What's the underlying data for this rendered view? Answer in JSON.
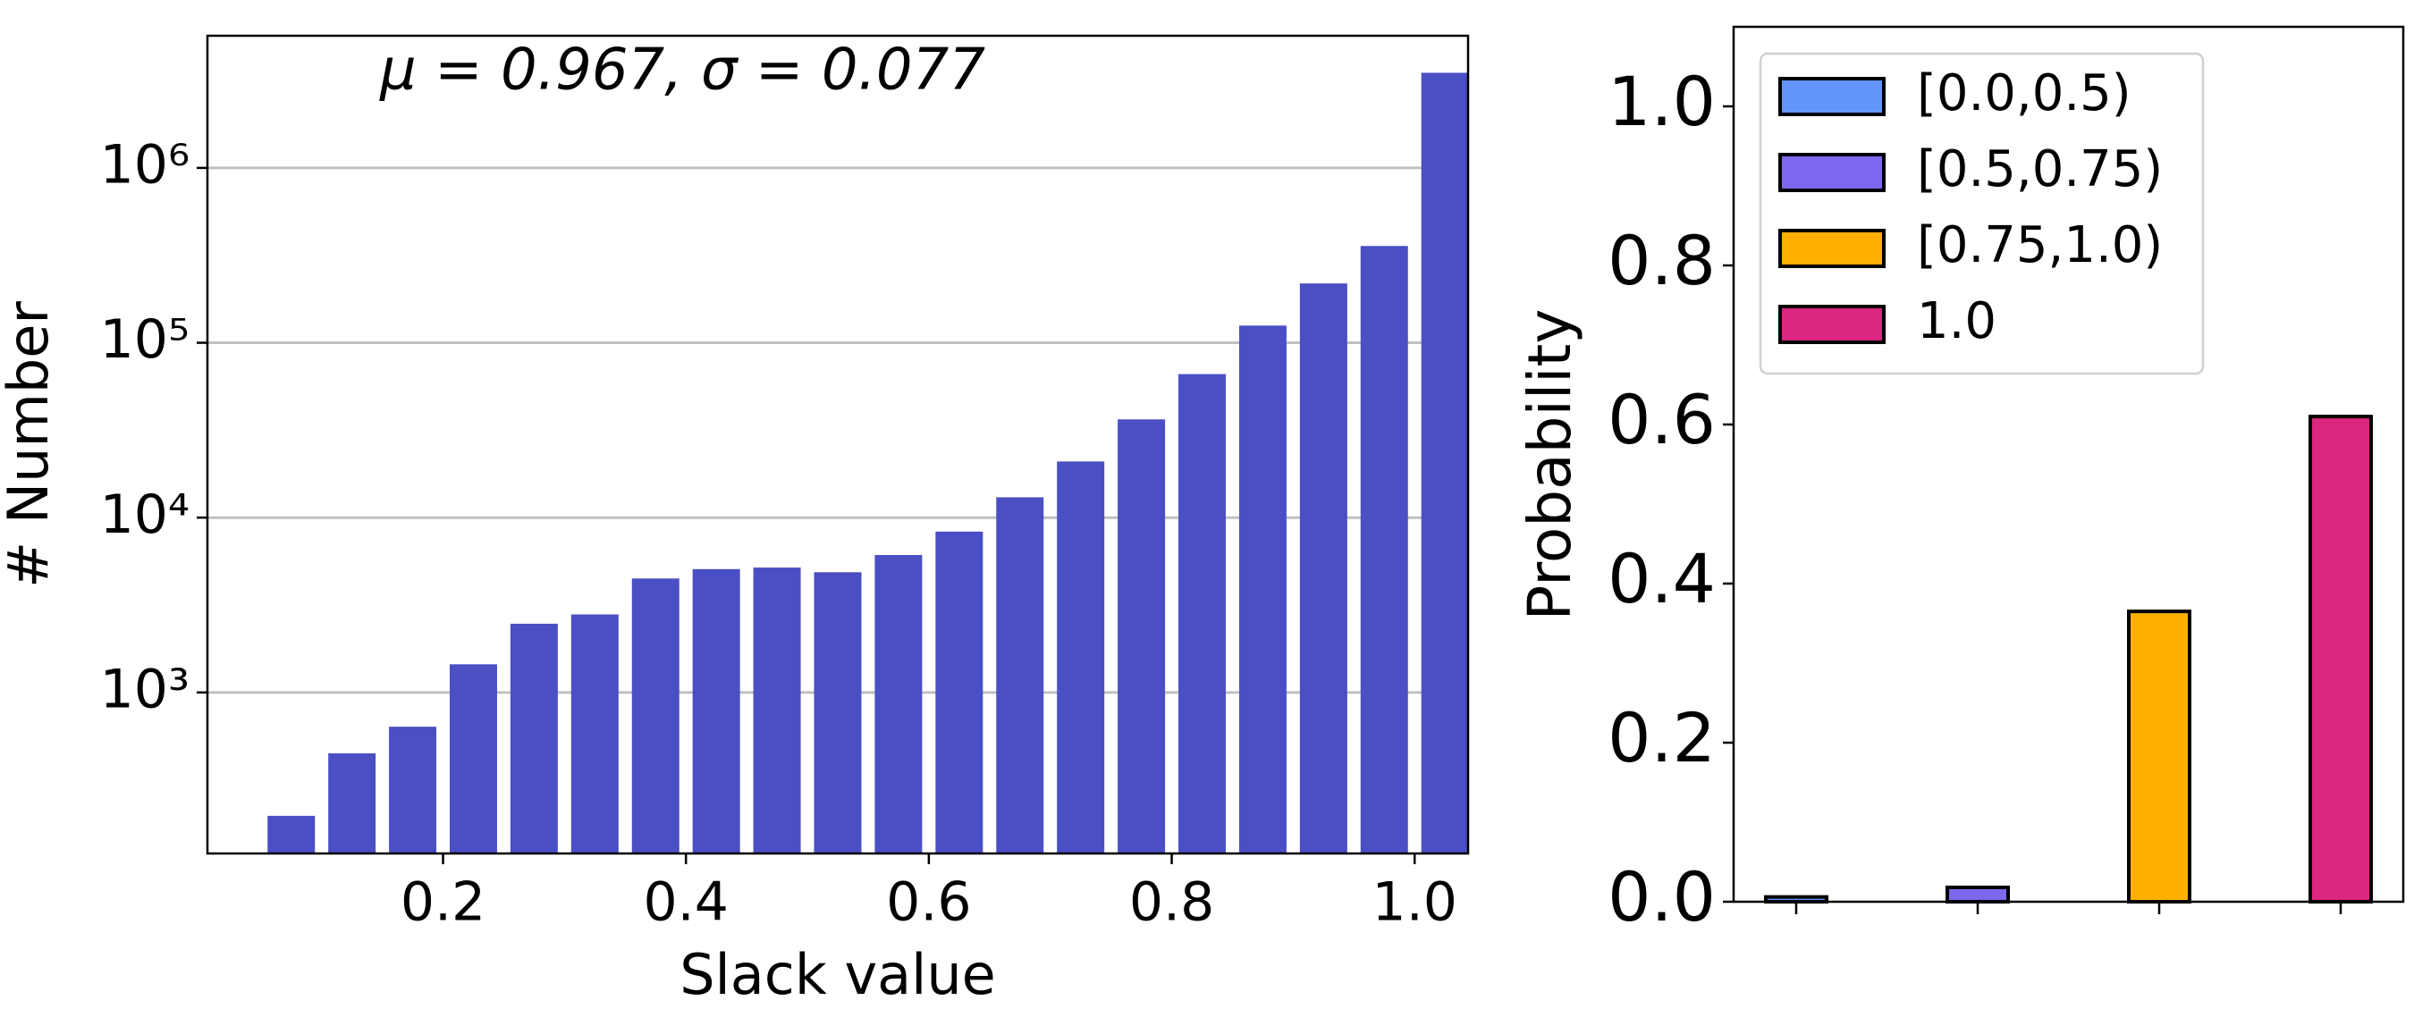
{
  "chart_data": [
    {
      "type": "histogram",
      "annotation": "μ = 0.967, σ = 0.077",
      "xlabel": "Slack value",
      "ylabel": "# Number",
      "bins": [
        0.05,
        0.1,
        0.15,
        0.2,
        0.25,
        0.3,
        0.35,
        0.4,
        0.45,
        0.5,
        0.55,
        0.6,
        0.65,
        0.7,
        0.75,
        0.8,
        0.85,
        0.9,
        0.95,
        1.0,
        1.05
      ],
      "values": [
        197,
        449,
        637,
        1449,
        2473,
        2794,
        4487,
        5075,
        5180,
        4871,
        6111,
        8318,
        13070,
        20950,
        36460,
        66200,
        125400,
        218400,
        357700,
        3500000
      ],
      "color": "#4b4fc4",
      "log_y": true,
      "grid": true,
      "xlim": [
        0.006,
        1.044
      ],
      "xticks": [
        0.2,
        0.4,
        0.6,
        0.8,
        {
          "value": 1.0,
          "label": "1.0"
        }
      ],
      "ylim": [
        120,
        5700000
      ],
      "yticks": [
        {
          "value": 1000,
          "label": "10³"
        },
        {
          "value": 10000,
          "label": "10⁴"
        },
        {
          "value": 100000,
          "label": "10⁵"
        },
        {
          "value": 1000000,
          "label": "10⁶"
        }
      ]
    },
    {
      "type": "bar",
      "ylabel": "Probability",
      "categories": [
        null,
        null,
        null,
        null
      ],
      "values": [
        0.006,
        0.018,
        0.365,
        0.61
      ],
      "colors": [
        "#6495fa",
        "#7b68ee",
        "#ffb000",
        "#dc267f"
      ],
      "legend": [
        "[0.0,0.5)",
        "[0.5,0.75)",
        "[0.75,1.0)",
        "1.0"
      ],
      "legend_position": "upper left",
      "ylim": [
        0,
        1.1
      ],
      "yticks": [
        {
          "value": 0,
          "label": "0.0"
        },
        0.2,
        0.4,
        0.6,
        0.8,
        {
          "value": 1.0,
          "label": "1.0"
        }
      ]
    }
  ]
}
